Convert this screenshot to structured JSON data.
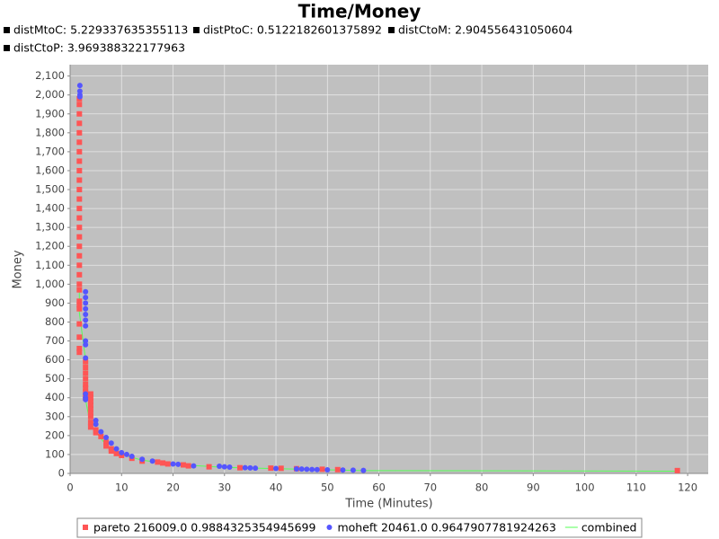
{
  "chart_data": {
    "type": "scatter",
    "title": "Time/Money",
    "subtitles": [
      "distMtoC: 5.229337635355113",
      "distPtoC: 0.5122182601375892",
      "distCtoM: 2.904556431050604",
      "distCtoP: 3.969388322177963"
    ],
    "x_label": "Time (Minutes)",
    "y_label": "Money",
    "xlim": [
      0,
      124
    ],
    "ylim": [
      0,
      2160
    ],
    "xticks": [
      0,
      10,
      20,
      30,
      40,
      50,
      60,
      70,
      80,
      90,
      100,
      110,
      120
    ],
    "yticks": [
      0,
      100,
      200,
      300,
      400,
      500,
      600,
      700,
      800,
      900,
      {
        "value": 1000,
        "label": "1,000"
      },
      {
        "value": 1100,
        "label": "1,100"
      },
      {
        "value": 1200,
        "label": "1,200"
      },
      {
        "value": 1300,
        "label": "1,300"
      },
      {
        "value": 1400,
        "label": "1,400"
      },
      {
        "value": 1500,
        "label": "1,500"
      },
      {
        "value": 1600,
        "label": "1,600"
      },
      {
        "value": 1700,
        "label": "1,700"
      },
      {
        "value": 1800,
        "label": "1,800"
      },
      {
        "value": 1900,
        "label": "1,900"
      },
      {
        "value": 2000,
        "label": "2,000"
      },
      {
        "value": 2100,
        "label": "2,100"
      }
    ],
    "grid": true,
    "series": [
      {
        "name": "pareto 216009.0 0.9884325354945699",
        "color": "#ff5555",
        "marker": "square",
        "x": [
          1.8,
          1.8,
          1.8,
          1.8,
          1.8,
          1.8,
          1.8,
          1.8,
          1.8,
          1.8,
          1.8,
          1.8,
          1.8,
          1.8,
          1.8,
          1.8,
          1.8,
          1.8,
          1.8,
          1.8,
          1.8,
          1.8,
          1.8,
          1.8,
          1.8,
          1.8,
          1.8,
          1.8,
          1.8,
          3,
          3,
          3,
          3,
          3,
          3,
          3,
          3,
          3,
          4,
          4,
          4,
          4,
          4,
          4,
          4,
          4,
          4,
          5,
          5,
          6,
          7,
          7,
          8,
          8,
          9,
          10,
          12,
          14,
          17,
          18,
          19,
          22,
          23,
          27,
          33,
          39,
          41,
          44,
          49,
          52,
          118
        ],
        "values": [
          1980,
          1950,
          1900,
          1850,
          1800,
          1750,
          1700,
          1650,
          1600,
          1550,
          1500,
          1450,
          1400,
          1350,
          1300,
          1250,
          1200,
          1150,
          1100,
          1050,
          1000,
          970,
          910,
          890,
          870,
          790,
          720,
          660,
          640,
          590,
          560,
          530,
          500,
          470,
          450,
          430,
          410,
          400,
          420,
          400,
          380,
          360,
          340,
          320,
          300,
          270,
          245,
          230,
          215,
          195,
          165,
          145,
          130,
          118,
          105,
          95,
          80,
          65,
          60,
          55,
          50,
          45,
          40,
          35,
          30,
          28,
          27,
          25,
          22,
          20,
          15
        ]
      },
      {
        "name": "moheft 20461.0 0.9647907781924263",
        "color": "#5555ff",
        "marker": "circle",
        "x": [
          1.9,
          1.9,
          1.9,
          1.9,
          3,
          3,
          3,
          3,
          3,
          3,
          3,
          3,
          3,
          3,
          3,
          3,
          3,
          5,
          5,
          6,
          7,
          8,
          9,
          10,
          11,
          12,
          14,
          16,
          20,
          21,
          24,
          29,
          30,
          31,
          34,
          35,
          36,
          40,
          44,
          45,
          46,
          47,
          48,
          50,
          53,
          55,
          57
        ],
        "values": [
          2050,
          2020,
          2000,
          1990,
          960,
          930,
          900,
          870,
          840,
          810,
          780,
          700,
          680,
          610,
          420,
          400,
          390,
          280,
          260,
          220,
          190,
          160,
          130,
          110,
          100,
          90,
          75,
          65,
          50,
          48,
          40,
          38,
          35,
          33,
          30,
          29,
          28,
          26,
          24,
          23,
          22,
          21,
          20,
          19,
          18,
          17,
          16
        ]
      },
      {
        "name": "combined",
        "color": "#55ff55",
        "marker": "line",
        "x": [
          1.8,
          1.8,
          3,
          3,
          4,
          5,
          7,
          10,
          14,
          20,
          30,
          45,
          57,
          118
        ],
        "values": [
          980,
          850,
          600,
          390,
          250,
          220,
          150,
          100,
          70,
          48,
          32,
          22,
          15,
          12
        ]
      }
    ]
  }
}
